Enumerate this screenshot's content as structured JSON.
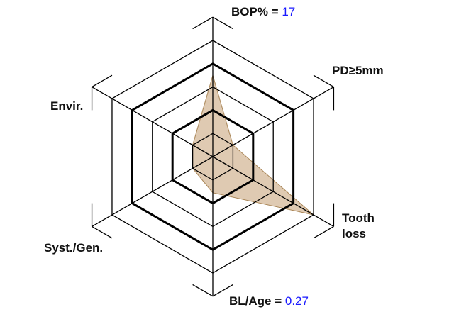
{
  "chart_data": {
    "type": "radar",
    "axes": [
      {
        "label": "BOP% = ",
        "value_text": "17",
        "level": 3.5
      },
      {
        "label": "PD≥5mm",
        "level": 1
      },
      {
        "label_line1": "Tooth",
        "label_line2": "loss",
        "level": 5
      },
      {
        "label": "BL/Age = ",
        "value_text": "0.27",
        "level": 1.55
      },
      {
        "label": "Syst./Gen.",
        "level": 1
      },
      {
        "label": "Envir.",
        "level": 1
      }
    ],
    "rings": 6,
    "thick_rings": [
      2,
      4
    ],
    "colors": {
      "fill": "#c9a77e",
      "stroke": "#a88455",
      "grid": "#000000",
      "value_text": "#1a1aff"
    }
  }
}
